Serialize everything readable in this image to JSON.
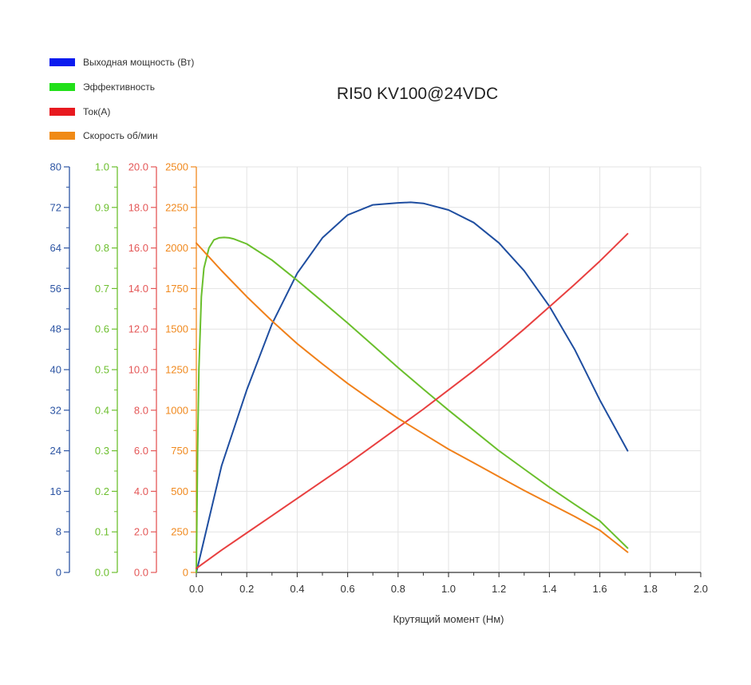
{
  "chart_data": {
    "type": "line",
    "title": "RI50 KV100@24VDC",
    "xlabel": "Крутящий момент (Нм)",
    "xlim": [
      0,
      2.0
    ],
    "xticks": [
      "0.0",
      "0.2",
      "0.4",
      "0.6",
      "0.8",
      "1.0",
      "1.2",
      "1.4",
      "1.6",
      "1.8",
      "2.0"
    ],
    "grid": true,
    "legend_position": "top-left",
    "legend": [
      {
        "label": "Выходная мощность (Вт)",
        "color": "#0b1bef"
      },
      {
        "label": "Эффективность",
        "color": "#22e01a"
      },
      {
        "label": "Ток(A)",
        "color": "#e8191f"
      },
      {
        "label": "Скорость об/мин",
        "color": "#f08a16"
      }
    ],
    "axes": [
      {
        "series": "Выходная мощность (Вт)",
        "color": "#2d55a3",
        "ylim": [
          0,
          80
        ],
        "ticks": [
          "0",
          "8",
          "16",
          "24",
          "32",
          "40",
          "48",
          "56",
          "64",
          "72",
          "80"
        ]
      },
      {
        "series": "Эффективность",
        "color": "#6cbf2e",
        "ylim": [
          0,
          1.0
        ],
        "ticks": [
          "0.0",
          "0.1",
          "0.2",
          "0.3",
          "0.4",
          "0.5",
          "0.6",
          "0.7",
          "0.8",
          "0.9",
          "1.0"
        ]
      },
      {
        "series": "Ток(A)",
        "color": "#e45757",
        "ylim": [
          0,
          20.0
        ],
        "ticks": [
          "0.0",
          "2.0",
          "4.0",
          "6.0",
          "8.0",
          "10.0",
          "12.0",
          "14.0",
          "16.0",
          "18.0",
          "20.0"
        ]
      },
      {
        "series": "Скорость об/мин",
        "color": "#f0891e",
        "ylim": [
          0,
          2500
        ],
        "ticks": [
          "0",
          "250",
          "500",
          "750",
          "1000",
          "1250",
          "1500",
          "1750",
          "2000",
          "2250",
          "2500"
        ]
      }
    ],
    "series": [
      {
        "name": "Выходная мощность (Вт)",
        "axis": 0,
        "color": "#1f4ea0",
        "x": [
          0,
          0.1,
          0.2,
          0.3,
          0.4,
          0.5,
          0.6,
          0.7,
          0.8,
          0.85,
          0.9,
          1.0,
          1.1,
          1.2,
          1.3,
          1.4,
          1.5,
          1.6,
          1.71
        ],
        "y": [
          0,
          21,
          36,
          49,
          59,
          66,
          70.5,
          72.5,
          72.9,
          73,
          72.8,
          71.5,
          69,
          65,
          59.5,
          52.5,
          44,
          34,
          24
        ]
      },
      {
        "name": "Эффективность",
        "axis": 1,
        "color": "#6abf2c",
        "x": [
          0,
          0.005,
          0.01,
          0.02,
          0.03,
          0.05,
          0.07,
          0.09,
          0.11,
          0.13,
          0.15,
          0.2,
          0.3,
          0.4,
          0.5,
          0.6,
          0.7,
          0.8,
          0.9,
          1.0,
          1.1,
          1.2,
          1.3,
          1.4,
          1.5,
          1.6,
          1.71
        ],
        "y": [
          0,
          0.3,
          0.5,
          0.68,
          0.75,
          0.8,
          0.82,
          0.825,
          0.826,
          0.825,
          0.822,
          0.81,
          0.77,
          0.72,
          0.668,
          0.615,
          0.56,
          0.505,
          0.452,
          0.4,
          0.35,
          0.3,
          0.255,
          0.21,
          0.168,
          0.127,
          0.06
        ]
      },
      {
        "name": "Ток(A)",
        "axis": 2,
        "color": "#e84040",
        "x": [
          0,
          0.1,
          0.2,
          0.3,
          0.4,
          0.5,
          0.6,
          0.7,
          0.8,
          0.9,
          1.0,
          1.1,
          1.2,
          1.3,
          1.4,
          1.5,
          1.6,
          1.71
        ],
        "y": [
          0.2,
          1.1,
          1.95,
          2.8,
          3.65,
          4.5,
          5.35,
          6.25,
          7.15,
          8.05,
          9.0,
          9.95,
          10.95,
          12.0,
          13.1,
          14.2,
          15.35,
          16.7
        ]
      },
      {
        "name": "Скорость об/мин",
        "axis": 3,
        "color": "#f0801a",
        "x": [
          0,
          0.1,
          0.2,
          0.3,
          0.4,
          0.5,
          0.6,
          0.7,
          0.8,
          0.9,
          1.0,
          1.1,
          1.2,
          1.3,
          1.4,
          1.5,
          1.6,
          1.71
        ],
        "y": [
          2030,
          1860,
          1700,
          1550,
          1410,
          1285,
          1165,
          1055,
          950,
          855,
          760,
          675,
          590,
          505,
          425,
          345,
          260,
          125
        ]
      }
    ]
  }
}
